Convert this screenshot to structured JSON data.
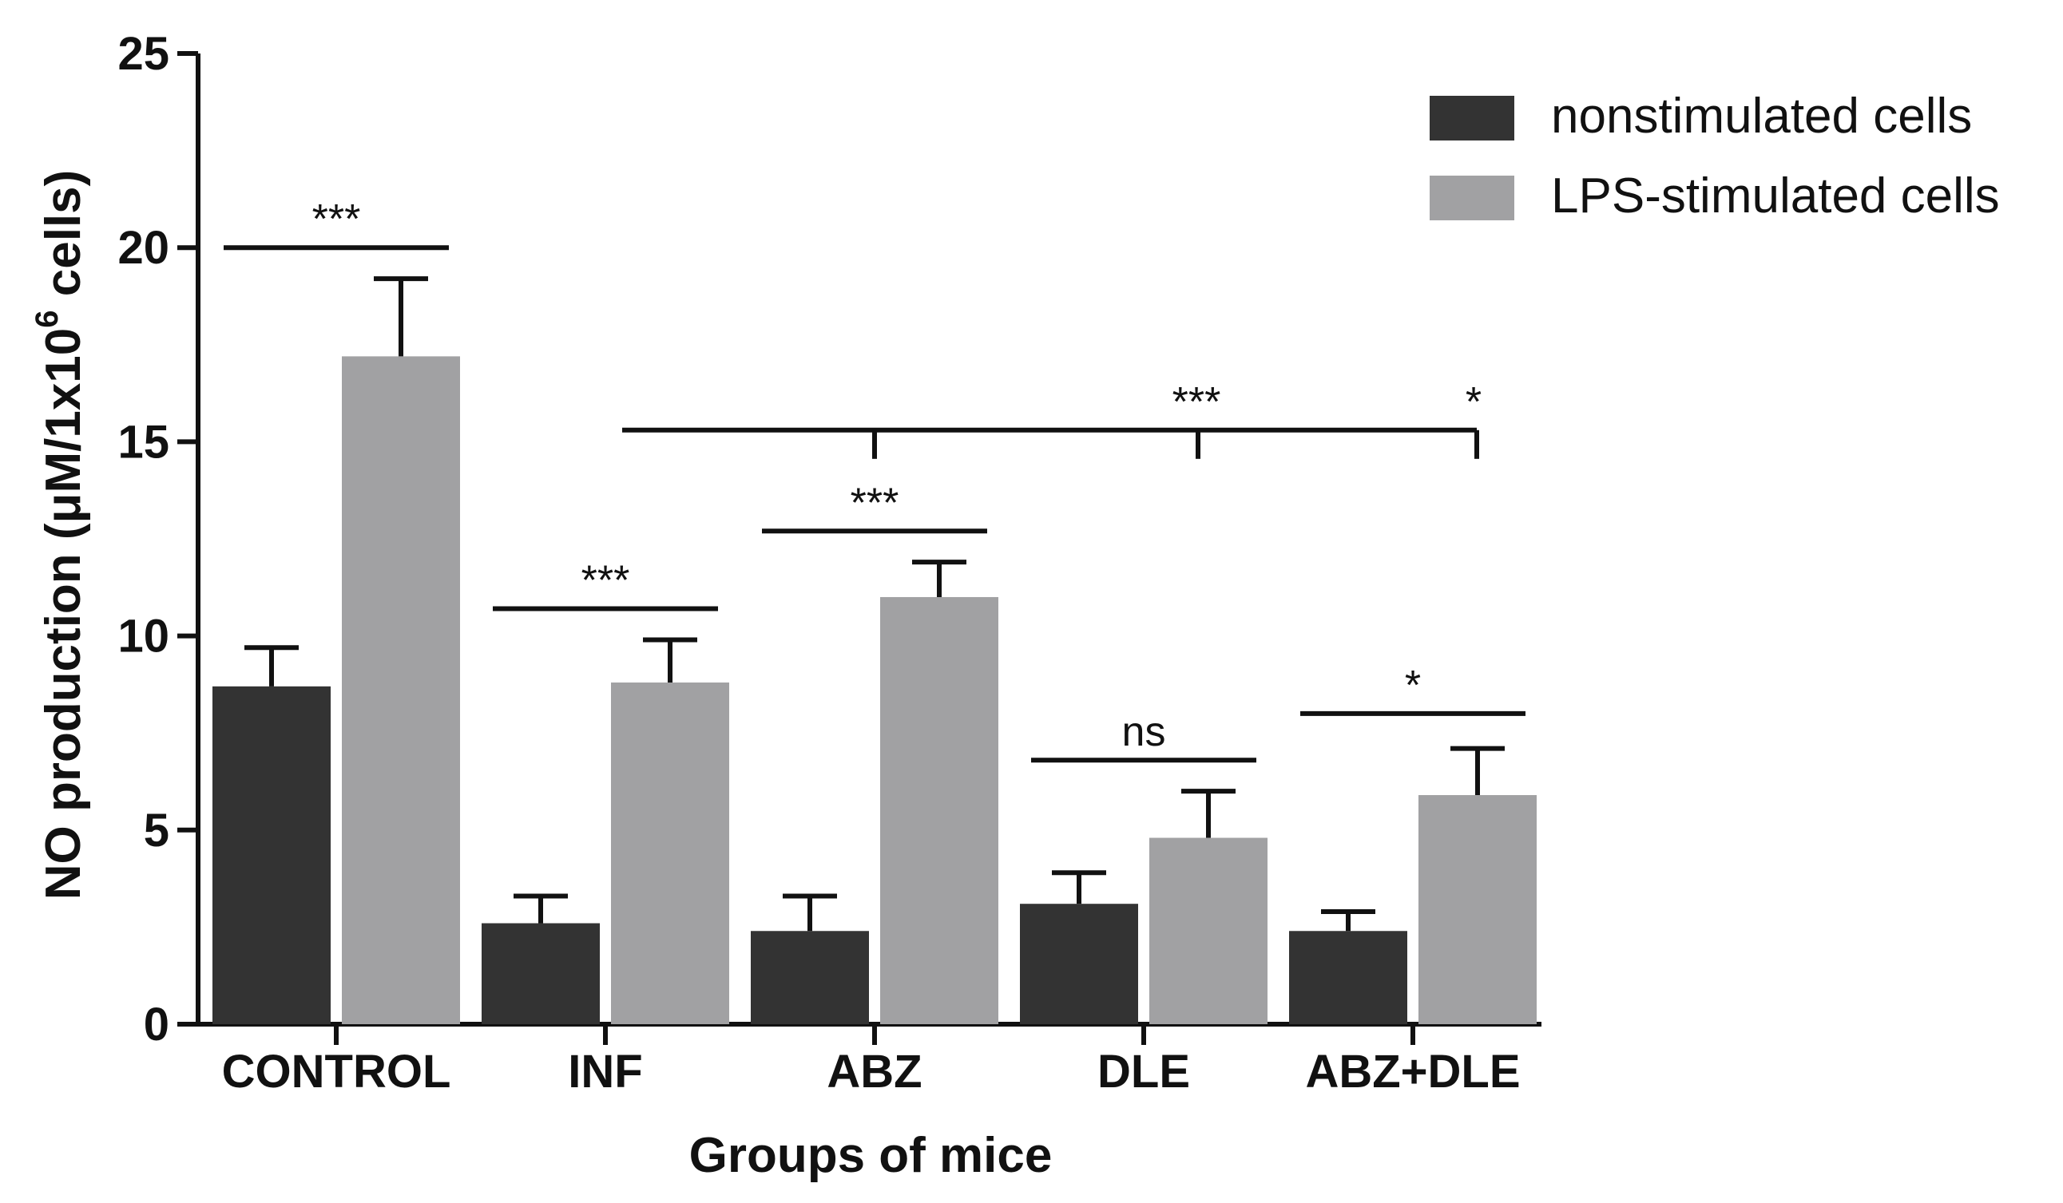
{
  "chart_data": {
    "type": "bar",
    "categories": [
      "CONTROL",
      "INF",
      "ABZ",
      "DLE",
      "ABZ+DLE"
    ],
    "series": [
      {
        "name": "nonstimulated cells",
        "color": "#333333",
        "values": [
          8.7,
          2.6,
          2.4,
          3.1,
          2.4
        ],
        "errors": [
          1.0,
          0.7,
          0.9,
          0.8,
          0.5
        ]
      },
      {
        "name": "LPS-stimulated cells",
        "color": "#a1a1a3",
        "values": [
          17.2,
          8.8,
          11.0,
          4.8,
          5.9
        ],
        "errors": [
          2.0,
          1.1,
          0.9,
          1.2,
          1.2
        ]
      }
    ],
    "xlabel": "Groups of mice",
    "ylabel": "NO production (μM/1x10",
    "ylabel_sup": "6",
    "ylabel_end": " cells)",
    "ylim": [
      0,
      25
    ],
    "yticks": [
      "0",
      "5",
      "10",
      "15",
      "20",
      "25"
    ],
    "legend_position": "top-right",
    "grid": false,
    "annotations": [
      {
        "label": "***",
        "type": "pair",
        "group": 0,
        "y": 20.0
      },
      {
        "label": "***",
        "type": "pair",
        "group": 1,
        "y": 10.7
      },
      {
        "label": "***",
        "type": "pair",
        "group": 2,
        "y": 12.7
      },
      {
        "label": "ns",
        "type": "pair",
        "group": 3,
        "y": 6.8
      },
      {
        "label": "*",
        "type": "pair",
        "group": 4,
        "y": 8.0
      },
      {
        "label": "***",
        "type": "bracket",
        "from_group": 1,
        "to_groups": [
          2,
          3
        ],
        "y": 15.3
      },
      {
        "label": "*",
        "type": "bracket_end",
        "to_group": 4,
        "y": 15.3
      }
    ]
  }
}
